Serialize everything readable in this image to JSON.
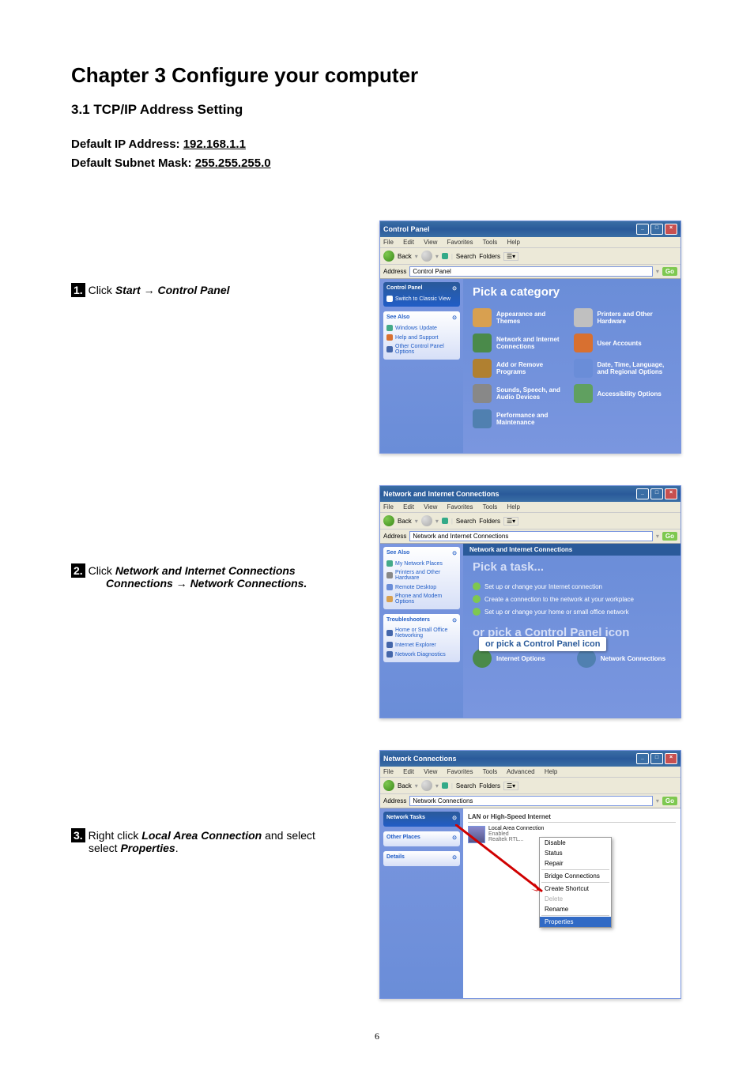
{
  "chapter_title": "Chapter 3 Configure your computer",
  "section_title": "3.1 TCP/IP Address Setting",
  "defaults": {
    "ip_label": "Default IP Address: ",
    "ip_value": "192.168.1.1",
    "mask_label": "Default Subnet Mask: ",
    "mask_value": "255.255.255.0"
  },
  "steps": {
    "s1": {
      "num": "1.",
      "prefix": " Click ",
      "b1": "Start",
      "arrow": " → ",
      "b2": "Control Panel"
    },
    "s2": {
      "num": "2.",
      "prefix": " Click ",
      "b1": "Network and Internet Connections",
      "arrow": " → ",
      "b2": "Network Connections."
    },
    "s3": {
      "num": "3.",
      "prefix": " Right click ",
      "b1": "Local Area Connection",
      "mid": " and select ",
      "b2": "Properties",
      "suffix": "."
    }
  },
  "win": {
    "menus": {
      "file": "File",
      "edit": "Edit",
      "view": "View",
      "fav": "Favorites",
      "tools": "Tools",
      "adv": "Advanced",
      "help": "Help"
    },
    "toolbar": {
      "back": "Back",
      "search": "Search",
      "folders": "Folders"
    },
    "go": "Go",
    "address_label": "Address"
  },
  "cp": {
    "title": "Control Panel",
    "address": "Control Panel",
    "sidebar_title": "Control Panel",
    "switch": "Switch to Classic View",
    "see_also": "See Also",
    "see_items": [
      "Windows Update",
      "Help and Support",
      "Other Control Panel Options"
    ],
    "heading": "Pick a category",
    "cats": [
      {
        "label": "Appearance and Themes",
        "color": "#d8a050"
      },
      {
        "label": "Printers and Other Hardware",
        "color": "#c0c0c0"
      },
      {
        "label": "Network and Internet Connections",
        "color": "#4a8a4a"
      },
      {
        "label": "User Accounts",
        "color": "#d87030"
      },
      {
        "label": "Add or Remove Programs",
        "color": "#b08030"
      },
      {
        "label": "Date, Time, Language, and Regional Options",
        "color": "#6a8dd8"
      },
      {
        "label": "Sounds, Speech, and Audio Devices",
        "color": "#888"
      },
      {
        "label": "Accessibility Options",
        "color": "#60a060"
      },
      {
        "label": "Performance and Maintenance",
        "color": "#5080b0"
      }
    ]
  },
  "nic": {
    "title": "Network and Internet Connections",
    "address": "Network and Internet Connections",
    "see_also": "See Also",
    "see_items": [
      "My Network Places",
      "Printers and Other Hardware",
      "Remote Desktop",
      "Phone and Modem Options"
    ],
    "trouble": "Troubleshooters",
    "trouble_items": [
      "Home or Small Office Networking",
      "Internet Explorer",
      "Network Diagnostics"
    ],
    "banner": "Network and Internet Connections",
    "pick_task": "Pick a task...",
    "tasks": [
      "Set up or change your Internet connection",
      "Create a connection to the network at your workplace",
      "Set up or change your home or small office network"
    ],
    "pick_icon": "or pick a Control Panel icon",
    "icons": [
      "Internet Options",
      "Network Connections"
    ],
    "callout": "or pick a Control Panel icon"
  },
  "nc": {
    "title": "Network Connections",
    "address": "Network Connections",
    "sidebar": {
      "tasks": "Network Tasks",
      "other": "Other Places",
      "details": "Details"
    },
    "section": "LAN or High-Speed Internet",
    "conn_name": "Local Area Connection",
    "conn_status": "Enabled",
    "conn_device": "Realtek RTL...",
    "menu": {
      "disable": "Disable",
      "status": "Status",
      "repair": "Repair",
      "bridge": "Bridge Connections",
      "shortcut": "Create Shortcut",
      "delete": "Delete",
      "rename": "Rename",
      "properties": "Properties"
    }
  },
  "page_number": "6"
}
